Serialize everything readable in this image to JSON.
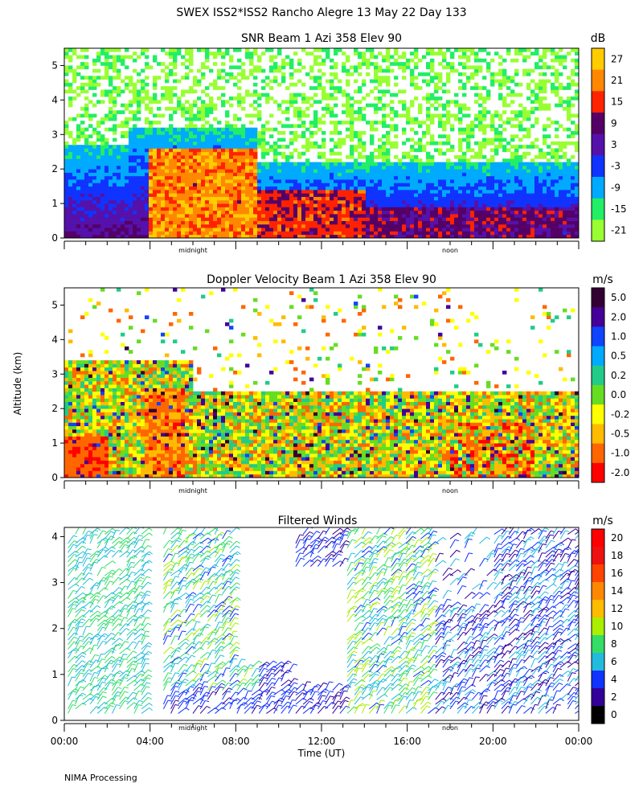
{
  "figure": {
    "title": "SWEX ISS2*ISS2 Rancho Alegre  13 May 22 Day 133",
    "footer": "NIMA Processing",
    "shared_ylabel": "Altitude (km)",
    "shared_xlabel": "Time (UT)",
    "x_tick_labels": [
      "00:00",
      "04:00",
      "08:00",
      "12:00",
      "16:00",
      "20:00",
      "00:00"
    ],
    "time_markers": [
      "midnight",
      "noon"
    ]
  },
  "chart_data": [
    {
      "type": "heatmap",
      "title": "SNR Beam 1 Azi 358 Elev 90",
      "xlabel": "Time (UT)",
      "ylabel": "Altitude (km)",
      "xlim": [
        0,
        24
      ],
      "ylim": [
        0,
        5.5
      ],
      "y_ticks": [
        "0",
        "1",
        "2",
        "3",
        "4",
        "5"
      ],
      "colorbar_unit": "dB",
      "colorbar_labels": [
        "27",
        "21",
        "15",
        "9",
        "3",
        "-3",
        "-9",
        "-15",
        "-21"
      ],
      "colorbar_colors": [
        "#ffcc00",
        "#ff8800",
        "#ff2200",
        "#550066",
        "#5511aa",
        "#1133ff",
        "#00aaff",
        "#22ee66",
        "#99ff33"
      ],
      "markers": [
        "midnight",
        "noon"
      ]
    },
    {
      "type": "heatmap",
      "title": "Doppler Velocity Beam 1 Azi 358 Elev 90",
      "xlabel": "Time (UT)",
      "ylabel": "Altitude (km)",
      "xlim": [
        0,
        24
      ],
      "ylim": [
        0,
        5.5
      ],
      "y_ticks": [
        "0",
        "1",
        "2",
        "3",
        "4",
        "5"
      ],
      "colorbar_unit": "m/s",
      "colorbar_labels": [
        "5.0",
        "2.0",
        "1.0",
        "0.5",
        "0.2",
        "0.0",
        "-0.2",
        "-0.5",
        "-1.0",
        "-2.0"
      ],
      "colorbar_colors": [
        "#330033",
        "#440099",
        "#1144ff",
        "#00aaff",
        "#22cc88",
        "#66dd22",
        "#ffff00",
        "#ffbb00",
        "#ff6600",
        "#ff0000"
      ],
      "markers": [
        "midnight",
        "noon"
      ]
    },
    {
      "type": "scatter",
      "title": "Filtered Winds",
      "xlabel": "Time (UT)",
      "ylabel": "Altitude (km)",
      "xlim": [
        0,
        24
      ],
      "ylim": [
        0,
        4.2
      ],
      "y_ticks": [
        "0",
        "1",
        "2",
        "3",
        "4"
      ],
      "x_ticks": [
        "00:00",
        "04:00",
        "08:00",
        "12:00",
        "16:00",
        "20:00",
        "00:00"
      ],
      "colorbar_unit": "m/s",
      "colorbar_labels": [
        "20",
        "18",
        "16",
        "14",
        "12",
        "10",
        "8",
        "6",
        "4",
        "2",
        "0"
      ],
      "colorbar_colors": [
        "#ff0000",
        "#ee1111",
        "#ff4400",
        "#ff8800",
        "#ffbb00",
        "#aaee00",
        "#33dd66",
        "#22bbdd",
        "#1133ff",
        "#330099",
        "#000000"
      ],
      "markers": [
        "midnight",
        "noon"
      ]
    }
  ]
}
